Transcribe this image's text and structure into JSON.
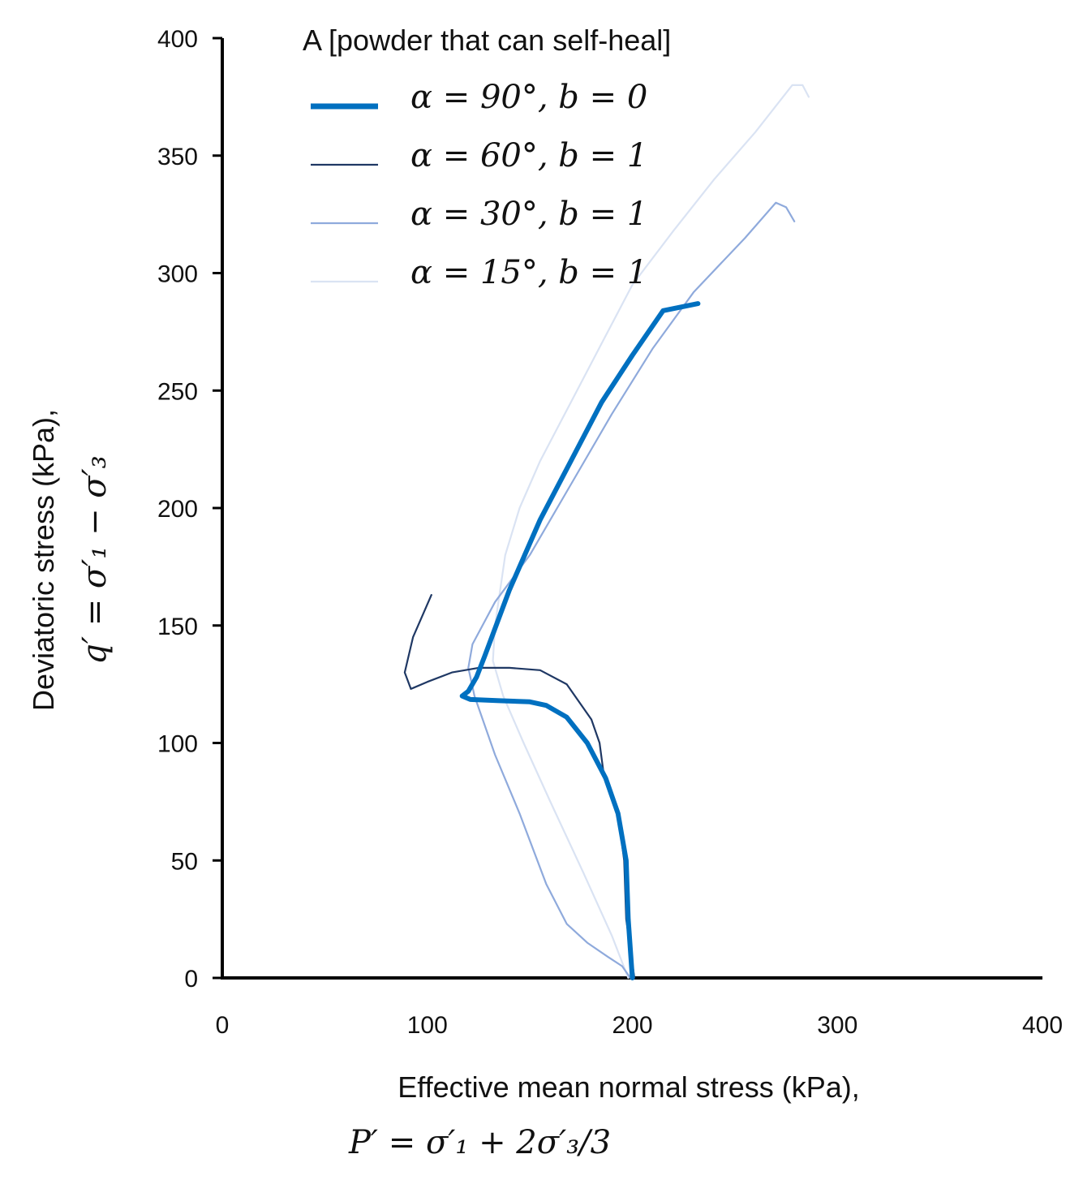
{
  "chart_data": {
    "type": "line",
    "title": "",
    "xlabel": "Effective mean normal stress (kPa),",
    "xlabel_formula": "P′ = σ′₁ + 2σ′₃/3",
    "ylabel": "Deviatoric stress (kPa),",
    "ylabel_formula": "q′ = σ′₁ − σ′₃",
    "xlim": [
      0,
      400
    ],
    "ylim": [
      0,
      400
    ],
    "xticks": [
      0,
      100,
      200,
      300,
      400
    ],
    "yticks": [
      0,
      50,
      100,
      150,
      200,
      250,
      300,
      350,
      400
    ],
    "grid": false,
    "legend_title": "A [powder that can self-heal]",
    "legend_position": "top-left",
    "series": [
      {
        "name": "α = 90°, b = 0",
        "color": "#0070C0",
        "width": "thick",
        "points": [
          [
            200,
            0
          ],
          [
            198,
            25
          ],
          [
            197,
            50
          ],
          [
            193,
            70
          ],
          [
            187,
            85
          ],
          [
            178,
            100
          ],
          [
            168,
            111
          ],
          [
            158,
            116
          ],
          [
            150,
            117.5
          ],
          [
            135,
            118
          ],
          [
            121,
            118.5
          ],
          [
            117,
            120
          ],
          [
            120,
            122
          ],
          [
            124,
            128
          ],
          [
            128,
            137
          ],
          [
            140,
            165
          ],
          [
            155,
            195
          ],
          [
            170,
            220
          ],
          [
            185,
            245
          ],
          [
            200,
            265
          ],
          [
            215,
            284
          ],
          [
            232,
            287
          ]
        ]
      },
      {
        "name": "α = 60°, b = 1",
        "color": "#1F3864",
        "width": "thin",
        "points": [
          [
            201,
            0
          ],
          [
            197,
            25
          ],
          [
            196,
            50
          ],
          [
            193,
            70
          ],
          [
            186,
            87
          ],
          [
            184,
            100
          ],
          [
            180,
            110
          ],
          [
            168,
            125
          ],
          [
            155,
            131
          ],
          [
            140,
            132
          ],
          [
            125,
            132
          ],
          [
            112,
            130
          ],
          [
            100,
            126
          ],
          [
            92,
            123
          ],
          [
            89,
            130
          ],
          [
            93,
            145
          ],
          [
            102,
            163
          ]
        ]
      },
      {
        "name": "α = 30°, b = 1",
        "color": "#8FAADC",
        "width": "thin",
        "points": [
          [
            199,
            0
          ],
          [
            195,
            5
          ],
          [
            188,
            9
          ],
          [
            178,
            15
          ],
          [
            168,
            23
          ],
          [
            158,
            40
          ],
          [
            145,
            70
          ],
          [
            133,
            95
          ],
          [
            123,
            120
          ],
          [
            120,
            132
          ],
          [
            122,
            142
          ],
          [
            133,
            160
          ],
          [
            150,
            180
          ],
          [
            170,
            210
          ],
          [
            190,
            240
          ],
          [
            210,
            268
          ],
          [
            230,
            292
          ],
          [
            255,
            315
          ],
          [
            270,
            330
          ],
          [
            275,
            328
          ],
          [
            279,
            322
          ]
        ]
      },
      {
        "name": "α = 15°, b = 1",
        "color": "#DAE3F3",
        "width": "thin",
        "points": [
          [
            198,
            0
          ],
          [
            190,
            18
          ],
          [
            176,
            45
          ],
          [
            160,
            75
          ],
          [
            147,
            100
          ],
          [
            137,
            120
          ],
          [
            132,
            135
          ],
          [
            133,
            150
          ],
          [
            138,
            180
          ],
          [
            145,
            200
          ],
          [
            155,
            220
          ],
          [
            170,
            245
          ],
          [
            185,
            270
          ],
          [
            200,
            295
          ],
          [
            220,
            318
          ],
          [
            240,
            340
          ],
          [
            260,
            360
          ],
          [
            278,
            380
          ],
          [
            283,
            380
          ],
          [
            286,
            375
          ]
        ]
      }
    ]
  }
}
